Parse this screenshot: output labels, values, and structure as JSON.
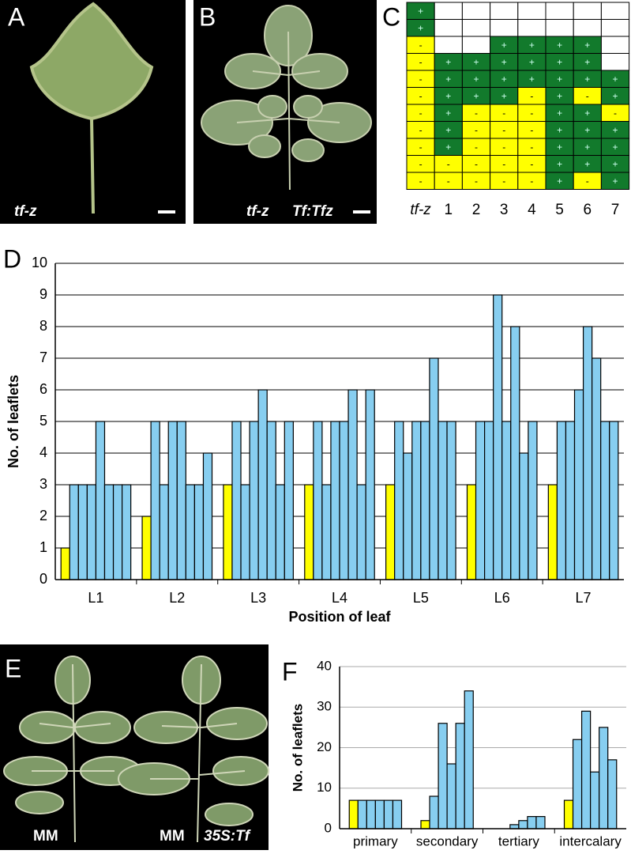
{
  "photo_panels": [
    {
      "letter": "A",
      "labels": [
        "tf-z"
      ]
    },
    {
      "letter": "B",
      "labels": [
        "tf-z",
        "Tf:Tfz"
      ]
    },
    {
      "letter": "E",
      "labels": [
        "MM",
        "MM",
        "35S:Tf"
      ]
    }
  ],
  "table": {
    "letter": "C",
    "columns": [
      "tf-z",
      "1",
      "2",
      "3",
      "4",
      "5",
      "6",
      "7"
    ],
    "rows": [
      [
        "+",
        null,
        null,
        null,
        null,
        null,
        null,
        null
      ],
      [
        "+",
        null,
        null,
        null,
        null,
        null,
        null,
        null
      ],
      [
        "-",
        null,
        null,
        "+",
        "+",
        "+",
        "+",
        null
      ],
      [
        "-",
        "+",
        "+",
        "+",
        "+",
        "+",
        "+",
        null
      ],
      [
        "-",
        "+",
        "+",
        "+",
        "+",
        "+",
        "+",
        "+"
      ],
      [
        "-",
        "+",
        "+",
        "+",
        "-",
        "+",
        "-",
        "+"
      ],
      [
        "-",
        "+",
        "-",
        "-",
        "-",
        "+",
        "+",
        "-"
      ],
      [
        "-",
        "+",
        "-",
        "-",
        "-",
        "+",
        "+",
        "+"
      ],
      [
        "-",
        "+",
        "-",
        "-",
        "-",
        "+",
        "+",
        "+"
      ],
      [
        "-",
        "-",
        "-",
        "-",
        "-",
        "+",
        "+",
        "+"
      ],
      [
        "-",
        "-",
        "-",
        "-",
        "-",
        "+",
        "-",
        "+"
      ]
    ]
  },
  "chart_data": [
    {
      "type": "bar",
      "letter": "D",
      "x_label": "Position of leaf",
      "y_label": "No. of leaflets",
      "categories": [
        "L1",
        "L2",
        "L3",
        "L4",
        "L5",
        "L6",
        "L7"
      ],
      "series": [
        {
          "color": "#ffff00",
          "values": [
            1,
            2,
            3,
            3,
            3,
            3,
            3
          ]
        },
        {
          "color": "#87cef0",
          "values": [
            3,
            5,
            5,
            5,
            5,
            5,
            5
          ]
        },
        {
          "color": "#87cef0",
          "values": [
            3,
            3,
            3,
            3,
            4,
            5,
            5
          ]
        },
        {
          "color": "#87cef0",
          "values": [
            3,
            5,
            5,
            5,
            5,
            9,
            6
          ]
        },
        {
          "color": "#87cef0",
          "values": [
            5,
            5,
            6,
            5,
            5,
            5,
            8
          ]
        },
        {
          "color": "#87cef0",
          "values": [
            3,
            3,
            5,
            6,
            7,
            8,
            7
          ]
        },
        {
          "color": "#87cef0",
          "values": [
            3,
            3,
            3,
            3,
            5,
            4,
            5
          ]
        },
        {
          "color": "#87cef0",
          "values": [
            3,
            4,
            5,
            6,
            5,
            5,
            5
          ]
        }
      ],
      "ylim": [
        0,
        10
      ],
      "yticks": [
        0,
        1,
        2,
        3,
        4,
        5,
        6,
        7,
        8,
        9,
        10
      ],
      "grid": true
    },
    {
      "type": "bar",
      "letter": "F",
      "y_label": "No. of leaflets",
      "categories": [
        "primary",
        "secondary",
        "tertiary",
        "intercalary"
      ],
      "series": [
        {
          "color": "#ffff00",
          "values": [
            7,
            2,
            0,
            7
          ]
        },
        {
          "color": "#87cef0",
          "values": [
            7,
            8,
            0,
            22
          ]
        },
        {
          "color": "#87cef0",
          "values": [
            7,
            26,
            1,
            29
          ]
        },
        {
          "color": "#87cef0",
          "values": [
            7,
            16,
            2,
            14
          ]
        },
        {
          "color": "#87cef0",
          "values": [
            7,
            26,
            3,
            25
          ]
        },
        {
          "color": "#87cef0",
          "values": [
            7,
            34,
            3,
            17
          ]
        }
      ],
      "ylim": [
        0,
        40
      ],
      "yticks": [
        0,
        10,
        20,
        30,
        40
      ],
      "grid": true
    }
  ]
}
